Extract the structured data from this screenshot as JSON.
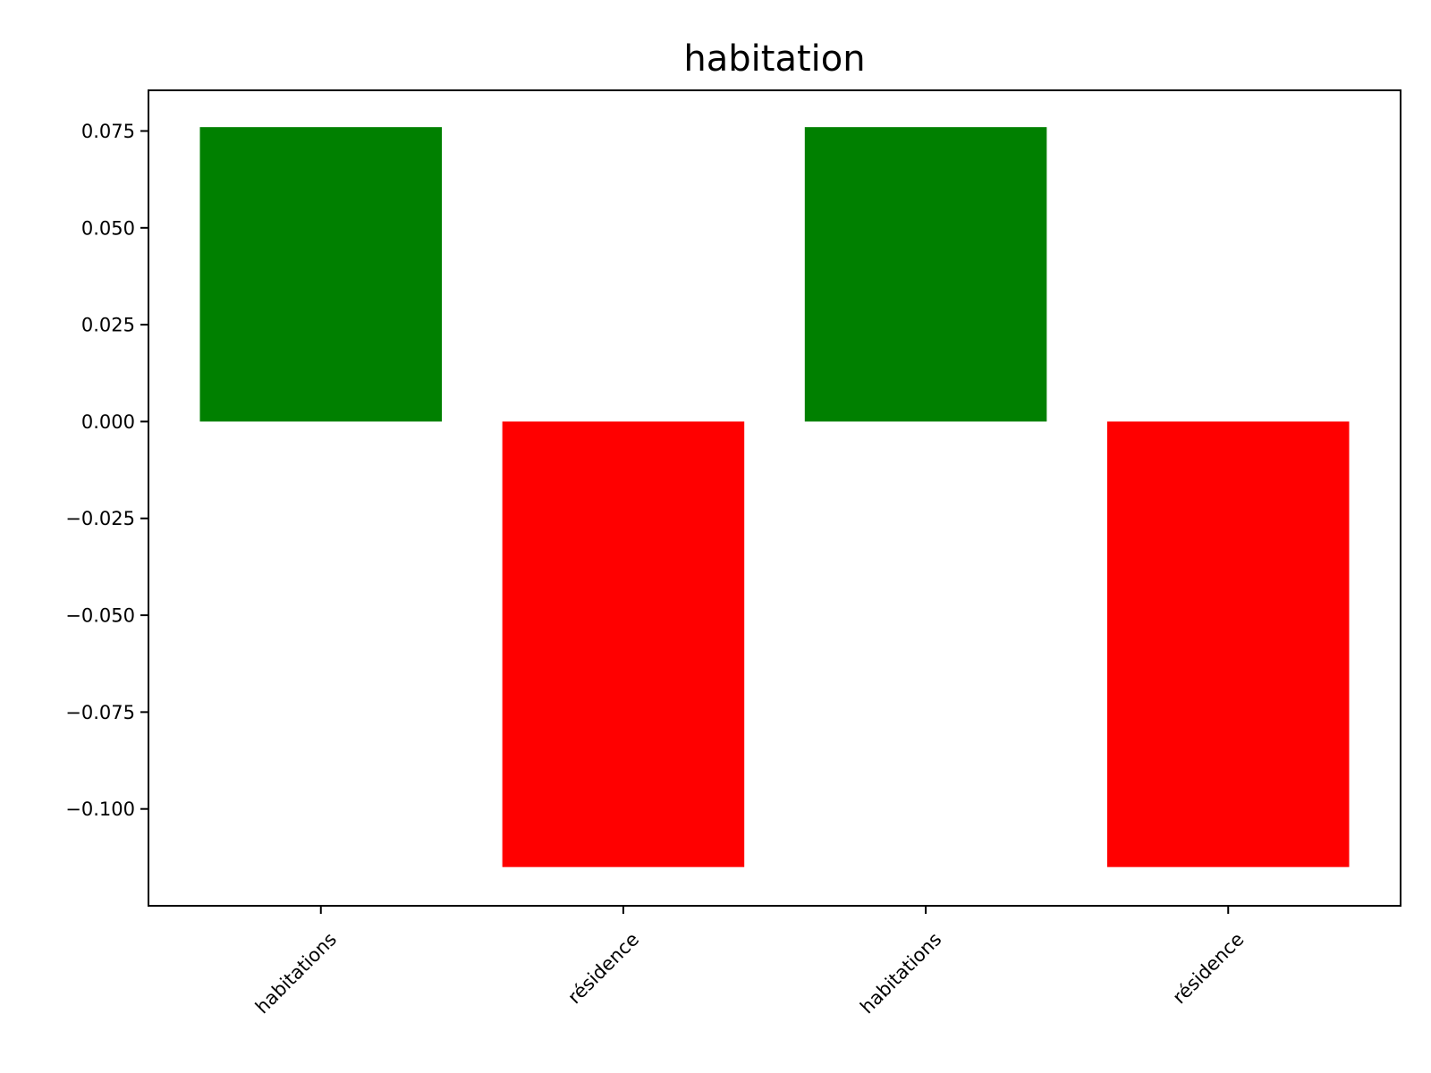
{
  "chart_data": {
    "type": "bar",
    "title": "habitation",
    "xlabel": "",
    "ylabel": "",
    "categories": [
      "habitations",
      "résidence",
      "habitations",
      "résidence"
    ],
    "values": [
      0.076,
      -0.115,
      0.076,
      -0.115
    ],
    "bar_colors": [
      "#008000",
      "#ff0000",
      "#008000",
      "#ff0000"
    ],
    "ylim": [
      -0.125,
      0.0855
    ],
    "yticks": [
      0.075,
      0.05,
      0.025,
      0.0,
      -0.025,
      -0.05,
      -0.075,
      -0.1
    ],
    "ytick_labels": [
      "0.075",
      "0.050",
      "0.025",
      "0.000",
      "−0.025",
      "−0.050",
      "−0.075",
      "−0.100"
    ],
    "xtick_rotation_deg": 45,
    "grid": false,
    "legend": "none"
  }
}
